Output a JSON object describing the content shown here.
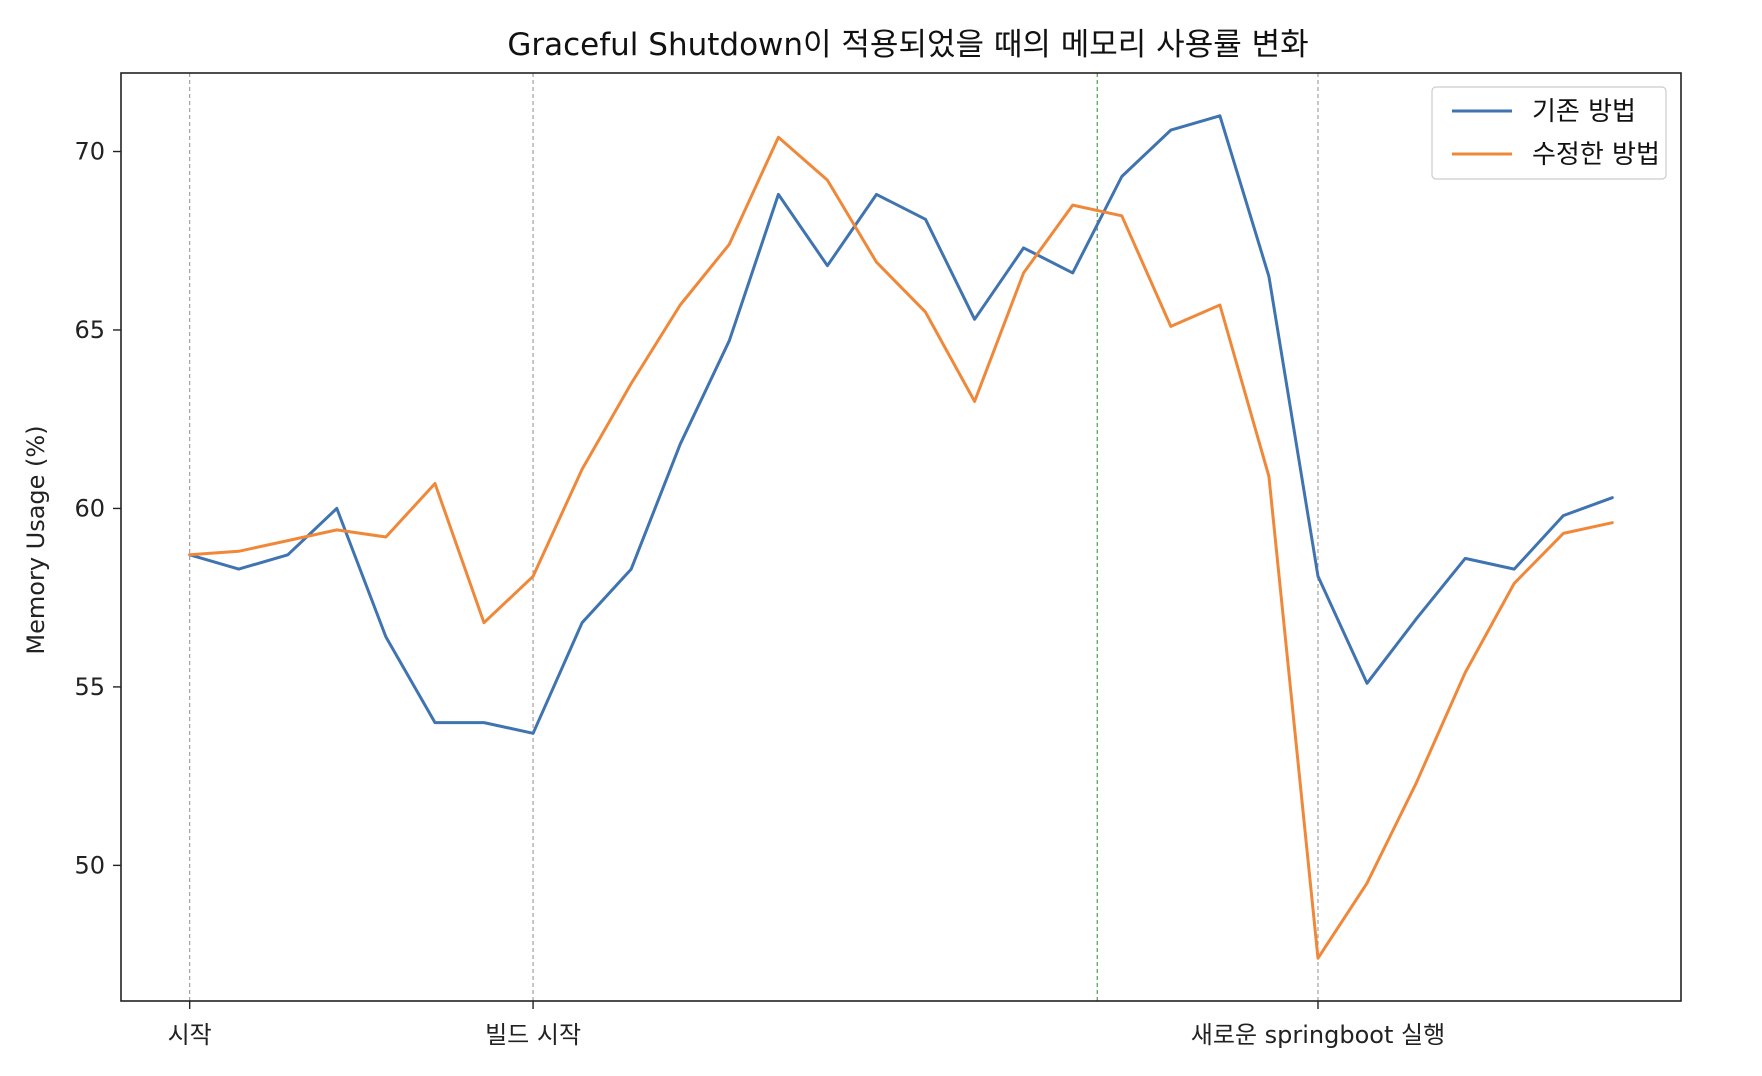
{
  "chart_data": {
    "type": "line",
    "title": "Graceful Shutdown이 적용되었을 때의 메모리 사용률 변화",
    "xlabel": "",
    "ylabel": "Memory Usage (%)",
    "xlim": [
      -1.4,
      30.4
    ],
    "ylim": [
      46.2,
      72.2
    ],
    "yticks": [
      50,
      55,
      60,
      65,
      70
    ],
    "x": [
      0,
      1,
      2,
      3,
      4,
      5,
      6,
      7,
      8,
      9,
      10,
      11,
      12,
      13,
      14,
      15,
      16,
      17,
      18,
      19,
      20,
      21,
      22,
      23,
      24,
      25,
      26,
      27,
      28,
      29
    ],
    "xtick_labels": [
      {
        "x": 0,
        "label": "시작"
      },
      {
        "x": 7,
        "label": "빌드 시작"
      },
      {
        "x": 23,
        "label": "새로운 springboot 실행"
      }
    ],
    "grid": "vertical dashed lines at ticked x positions",
    "vlines": [
      {
        "x": 0,
        "color": "#999999"
      },
      {
        "x": 7,
        "color": "#999999"
      },
      {
        "x": 18.5,
        "color": "#3a9a3a"
      },
      {
        "x": 23,
        "color": "#999999"
      }
    ],
    "legend": "top-right",
    "series": [
      {
        "name": "기존 방법",
        "color": "#3f74b0",
        "values": [
          58.7,
          58.3,
          58.7,
          60.0,
          56.4,
          54.0,
          54.0,
          53.7,
          56.8,
          58.3,
          61.8,
          64.7,
          68.8,
          66.8,
          68.8,
          68.1,
          65.3,
          67.3,
          66.6,
          69.3,
          70.6,
          71.0,
          66.5,
          58.1,
          55.1,
          56.9,
          58.6,
          58.3,
          59.8,
          60.3
        ]
      },
      {
        "name": "수정한 방법",
        "color": "#f0883a",
        "values": [
          58.7,
          58.8,
          59.1,
          59.4,
          59.2,
          60.7,
          56.8,
          58.1,
          61.1,
          63.5,
          65.7,
          67.4,
          70.4,
          69.2,
          66.9,
          65.5,
          63.0,
          66.6,
          68.5,
          68.2,
          65.1,
          65.7,
          60.9,
          47.4,
          49.5,
          52.3,
          55.4,
          57.9,
          59.3,
          59.6
        ]
      }
    ]
  }
}
